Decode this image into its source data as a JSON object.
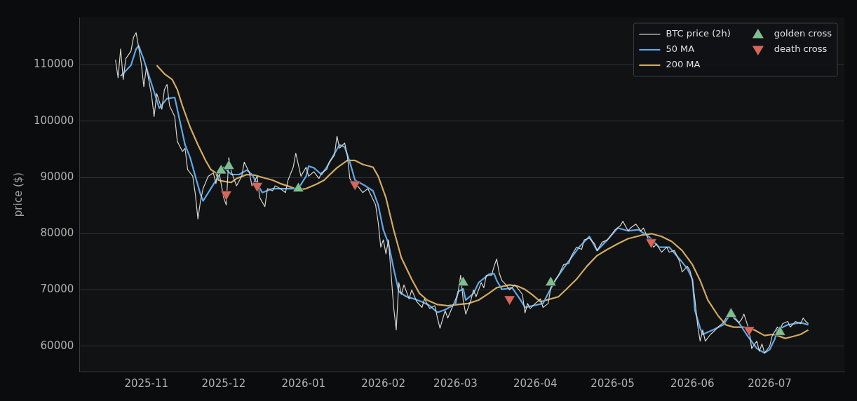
{
  "chart_data": {
    "type": "line",
    "ylabel": "price ($)",
    "xlim": [
      "2025-10-06",
      "2026-07-30"
    ],
    "xticks": [
      {
        "value": "2025-11-01",
        "label": "2025-11"
      },
      {
        "value": "2025-12-01",
        "label": "2025-12"
      },
      {
        "value": "2026-01-01",
        "label": "2026-01"
      },
      {
        "value": "2026-02-01",
        "label": "2026-02"
      },
      {
        "value": "2026-03-01",
        "label": "2026-03"
      },
      {
        "value": "2026-04-01",
        "label": "2026-04"
      },
      {
        "value": "2026-05-01",
        "label": "2026-05"
      },
      {
        "value": "2026-06-01",
        "label": "2026-06"
      },
      {
        "value": "2026-07-01",
        "label": "2026-07"
      }
    ],
    "ylim": [
      55500,
      118400
    ],
    "yticks": [
      60000,
      70000,
      80000,
      90000,
      100000,
      110000
    ],
    "grid": "y",
    "legend": "top right",
    "line_style": "solid",
    "series": [
      {
        "name": "BTC price (2h)",
        "type": "line",
        "color": "#d8d4cc",
        "marker": "none",
        "x": [
          "2025-10-20",
          "2025-10-21",
          "2025-10-22",
          "2025-10-23",
          "2025-10-24",
          "2025-10-26",
          "2025-10-27",
          "2025-10-28",
          "2025-10-29",
          "2025-10-30",
          "2025-10-31",
          "2025-11-01",
          "2025-11-03",
          "2025-11-04",
          "2025-11-05",
          "2025-11-07",
          "2025-11-08",
          "2025-11-09",
          "2025-11-10",
          "2025-11-12",
          "2025-11-13",
          "2025-11-15",
          "2025-11-16",
          "2025-11-17",
          "2025-11-19",
          "2025-11-20",
          "2025-11-21",
          "2025-11-22",
          "2025-11-23",
          "2025-11-25",
          "2025-11-27",
          "2025-11-28",
          "2025-11-29",
          "2025-12-01",
          "2025-12-02",
          "2025-12-03",
          "2025-12-04",
          "2025-12-06",
          "2025-12-08",
          "2025-12-09",
          "2025-12-11",
          "2025-12-12",
          "2025-12-14",
          "2025-12-15",
          "2025-12-17",
          "2025-12-18",
          "2025-12-20",
          "2025-12-21",
          "2025-12-23",
          "2025-12-25",
          "2025-12-26",
          "2025-12-28",
          "2025-12-29",
          "2025-12-31",
          "2026-01-02",
          "2026-01-03",
          "2026-01-05",
          "2026-01-07",
          "2026-01-08",
          "2026-01-10",
          "2026-01-11",
          "2026-01-13",
          "2026-01-14",
          "2026-01-15",
          "2026-01-17",
          "2026-01-18",
          "2026-01-19",
          "2026-01-21",
          "2026-01-22",
          "2026-01-24",
          "2026-01-26",
          "2026-01-27",
          "2026-01-29",
          "2026-01-30",
          "2026-01-31",
          "2026-02-01",
          "2026-02-02",
          "2026-02-03",
          "2026-02-05",
          "2026-02-06",
          "2026-02-07",
          "2026-02-08",
          "2026-02-09",
          "2026-02-11",
          "2026-02-12",
          "2026-02-14",
          "2026-02-16",
          "2026-02-17",
          "2026-02-19",
          "2026-02-21",
          "2026-02-22",
          "2026-02-23",
          "2026-02-25",
          "2026-02-26",
          "2026-02-28",
          "2026-03-02",
          "2026-03-03",
          "2026-03-04",
          "2026-03-05",
          "2026-03-07",
          "2026-03-08",
          "2026-03-09",
          "2026-03-11",
          "2026-03-12",
          "2026-03-13",
          "2026-03-15",
          "2026-03-16",
          "2026-03-17",
          "2026-03-18",
          "2026-03-19",
          "2026-03-21",
          "2026-03-22",
          "2026-03-24",
          "2026-03-25",
          "2026-03-27",
          "2026-03-28",
          "2026-03-29",
          "2026-03-30",
          "2026-04-01",
          "2026-04-03",
          "2026-04-04",
          "2026-04-06",
          "2026-04-07",
          "2026-04-09",
          "2026-04-10",
          "2026-04-12",
          "2026-04-14",
          "2026-04-15",
          "2026-04-17",
          "2026-04-19",
          "2026-04-20",
          "2026-04-22",
          "2026-04-24",
          "2026-04-25",
          "2026-04-27",
          "2026-04-29",
          "2026-04-30",
          "2026-05-02",
          "2026-05-04",
          "2026-05-05",
          "2026-05-07",
          "2026-05-08",
          "2026-05-10",
          "2026-05-12",
          "2026-05-13",
          "2026-05-15",
          "2026-05-17",
          "2026-05-18",
          "2026-05-20",
          "2026-05-22",
          "2026-05-23",
          "2026-05-25",
          "2026-05-27",
          "2026-05-28",
          "2026-05-30",
          "2026-05-31",
          "2026-06-01",
          "2026-06-02",
          "2026-06-03",
          "2026-06-04",
          "2026-06-05",
          "2026-06-06",
          "2026-06-08",
          "2026-06-09",
          "2026-06-11",
          "2026-06-13",
          "2026-06-14",
          "2026-06-16",
          "2026-06-17",
          "2026-06-19",
          "2026-06-20",
          "2026-06-21",
          "2026-06-23",
          "2026-06-24",
          "2026-06-26",
          "2026-06-27",
          "2026-06-28",
          "2026-06-29",
          "2026-07-01",
          "2026-07-02",
          "2026-07-04",
          "2026-07-05",
          "2026-07-06",
          "2026-07-08",
          "2026-07-09",
          "2026-07-11",
          "2026-07-13",
          "2026-07-14",
          "2026-07-15",
          "2026-07-16"
        ],
        "values": [
          110900,
          107700,
          112800,
          107400,
          111100,
          112400,
          114900,
          115700,
          113100,
          110300,
          106100,
          109600,
          104600,
          100800,
          104900,
          102100,
          105600,
          106500,
          102700,
          100800,
          96400,
          94600,
          95200,
          91400,
          90200,
          87000,
          82600,
          85800,
          88000,
          90200,
          90800,
          88900,
          91400,
          86400,
          85100,
          93500,
          91000,
          88500,
          90200,
          92700,
          90800,
          88500,
          90200,
          86400,
          84800,
          88000,
          87600,
          88500,
          88000,
          87300,
          89500,
          91800,
          94300,
          90200,
          91800,
          90200,
          91000,
          89800,
          90800,
          91400,
          92700,
          93900,
          97300,
          95200,
          96100,
          93900,
          89800,
          88000,
          88500,
          87300,
          88000,
          87000,
          85100,
          82000,
          77600,
          78900,
          76400,
          78900,
          66900,
          62900,
          71300,
          69200,
          70900,
          68400,
          70000,
          67900,
          66900,
          68400,
          66700,
          67200,
          65000,
          63200,
          66300,
          65000,
          67200,
          69400,
          72600,
          68200,
          65700,
          68200,
          70000,
          68800,
          71300,
          70400,
          72600,
          72600,
          74200,
          75500,
          73000,
          71700,
          70700,
          70000,
          70900,
          70400,
          69200,
          65900,
          67600,
          66700,
          67600,
          68400,
          66900,
          67600,
          70400,
          71900,
          72600,
          74500,
          74700,
          76000,
          77600,
          77200,
          78900,
          79200,
          78200,
          77000,
          78500,
          78900,
          79500,
          80700,
          81400,
          82200,
          80500,
          81000,
          81700,
          80500,
          81000,
          78900,
          77600,
          78200,
          76700,
          77600,
          76700,
          77000,
          75100,
          73200,
          74200,
          73500,
          71700,
          68200,
          63800,
          60900,
          62900,
          60900,
          62100,
          62500,
          63400,
          64200,
          65000,
          66700,
          65000,
          64200,
          64700,
          65700,
          62900,
          59600,
          60900,
          59100,
          60400,
          58800,
          60000,
          61900,
          63400,
          62900,
          64000,
          64400,
          63400,
          64400,
          64000,
          65000,
          64400,
          64000
        ]
      },
      {
        "name": "50 MA",
        "type": "line",
        "color": "#5fa8e8",
        "marker": "none",
        "x": [
          "2025-10-22",
          "2025-10-26",
          "2025-10-28",
          "2025-10-29",
          "2025-10-31",
          "2025-11-04",
          "2025-11-06",
          "2025-11-09",
          "2025-11-12",
          "2025-11-13",
          "2025-11-16",
          "2025-11-18",
          "2025-11-20",
          "2025-11-22",
          "2025-11-23",
          "2025-11-26",
          "2025-11-29",
          "2025-12-01",
          "2025-12-04",
          "2025-12-07",
          "2025-12-10",
          "2025-12-12",
          "2025-12-14",
          "2025-12-16",
          "2025-12-20",
          "2025-12-24",
          "2025-12-30",
          "2026-01-02",
          "2026-01-03",
          "2026-01-05",
          "2026-01-08",
          "2026-01-10",
          "2026-01-13",
          "2026-01-15",
          "2026-01-17",
          "2026-01-19",
          "2026-01-21",
          "2026-01-25",
          "2026-01-28",
          "2026-01-30",
          "2026-02-01",
          "2026-02-03",
          "2026-02-05",
          "2026-02-07",
          "2026-02-10",
          "2026-02-13",
          "2026-02-16",
          "2026-02-19",
          "2026-02-22",
          "2026-02-25",
          "2026-03-01",
          "2026-03-02",
          "2026-03-04",
          "2026-03-05",
          "2026-03-08",
          "2026-03-10",
          "2026-03-14",
          "2026-03-16",
          "2026-03-17",
          "2026-03-19",
          "2026-03-23",
          "2026-03-26",
          "2026-03-28",
          "2026-03-31",
          "2026-04-04",
          "2026-04-06",
          "2026-04-09",
          "2026-04-13",
          "2026-04-18",
          "2026-04-22",
          "2026-04-25",
          "2026-04-29",
          "2026-05-03",
          "2026-05-07",
          "2026-05-11",
          "2026-05-15",
          "2026-05-19",
          "2026-05-23",
          "2026-05-27",
          "2026-05-30",
          "2026-06-01",
          "2026-06-02",
          "2026-06-04",
          "2026-06-05",
          "2026-06-09",
          "2026-06-13",
          "2026-06-16",
          "2026-06-19",
          "2026-06-22",
          "2026-06-26",
          "2026-06-29",
          "2026-07-01",
          "2026-07-03",
          "2026-07-04",
          "2026-07-08",
          "2026-07-13",
          "2026-07-16"
        ],
        "values": [
          108000,
          109900,
          112800,
          113400,
          110900,
          105200,
          102300,
          104000,
          104200,
          102100,
          95800,
          93500,
          90200,
          87000,
          85800,
          88000,
          90200,
          91800,
          90500,
          90500,
          91300,
          90500,
          88900,
          87300,
          88000,
          88000,
          88000,
          90200,
          92000,
          91700,
          90500,
          91800,
          94200,
          95800,
          95400,
          92700,
          89500,
          88500,
          87600,
          85100,
          80700,
          78200,
          73800,
          69700,
          68800,
          68400,
          67900,
          67200,
          66000,
          66500,
          67500,
          69700,
          70200,
          68200,
          69400,
          71300,
          72800,
          72900,
          71700,
          70100,
          70400,
          68400,
          66900,
          67200,
          67600,
          69400,
          71900,
          74500,
          77600,
          79500,
          77000,
          78900,
          81000,
          80500,
          80700,
          79500,
          77600,
          77600,
          75500,
          73800,
          71900,
          66300,
          63200,
          62100,
          62900,
          63800,
          65900,
          64200,
          62100,
          59600,
          58800,
          59400,
          61300,
          62900,
          63800,
          64200,
          63800
        ]
      },
      {
        "name": "200 MA",
        "type": "line",
        "color": "#d4aa60",
        "marker": "none",
        "x": [
          "2025-11-05",
          "2025-11-08",
          "2025-11-11",
          "2025-11-13",
          "2025-11-15",
          "2025-11-18",
          "2025-11-21",
          "2025-11-24",
          "2025-11-26",
          "2025-11-28",
          "2025-11-29",
          "2025-12-01",
          "2025-12-04",
          "2025-12-06",
          "2025-12-10",
          "2025-12-13",
          "2025-12-16",
          "2025-12-20",
          "2025-12-23",
          "2025-12-27",
          "2025-12-30",
          "2026-01-02",
          "2026-01-06",
          "2026-01-09",
          "2026-01-11",
          "2026-01-14",
          "2026-01-18",
          "2026-01-21",
          "2026-01-24",
          "2026-01-28",
          "2026-01-30",
          "2026-02-02",
          "2026-02-05",
          "2026-02-08",
          "2026-02-12",
          "2026-02-15",
          "2026-02-18",
          "2026-02-22",
          "2026-02-26",
          "2026-03-02",
          "2026-03-06",
          "2026-03-10",
          "2026-03-14",
          "2026-03-17",
          "2026-03-22",
          "2026-03-25",
          "2026-03-28",
          "2026-03-31",
          "2026-04-03",
          "2026-04-07",
          "2026-04-10",
          "2026-04-13",
          "2026-04-17",
          "2026-04-21",
          "2026-04-25",
          "2026-04-29",
          "2026-05-03",
          "2026-05-07",
          "2026-05-12",
          "2026-05-16",
          "2026-05-20",
          "2026-05-24",
          "2026-05-28",
          "2026-06-01",
          "2026-06-04",
          "2026-06-07",
          "2026-06-11",
          "2026-06-14",
          "2026-06-17",
          "2026-06-21",
          "2026-06-25",
          "2026-06-29",
          "2026-07-02",
          "2026-07-04",
          "2026-07-07",
          "2026-07-09",
          "2026-07-13",
          "2026-07-16"
        ],
        "values": [
          109900,
          108400,
          107400,
          105600,
          102700,
          98900,
          95800,
          93000,
          91400,
          90800,
          89500,
          89300,
          89100,
          89800,
          90500,
          90400,
          90000,
          89500,
          88900,
          88300,
          87800,
          88000,
          88800,
          89500,
          90400,
          91700,
          93000,
          93000,
          92300,
          91800,
          90200,
          86400,
          80700,
          75700,
          71900,
          69400,
          68200,
          67400,
          67200,
          67400,
          67600,
          68200,
          69400,
          70400,
          70900,
          70700,
          70100,
          69100,
          67900,
          68400,
          68800,
          70100,
          71900,
          74200,
          76100,
          77200,
          78200,
          79100,
          79700,
          80000,
          79500,
          78600,
          77000,
          74500,
          71700,
          68200,
          65400,
          63800,
          63400,
          63400,
          62900,
          61900,
          62100,
          61900,
          61400,
          61600,
          62100,
          62900
        ]
      },
      {
        "name": "golden cross",
        "type": "scatter",
        "color": "#7fbf8f",
        "marker": "triangle",
        "x": [
          "2025-11-30",
          "2025-12-03",
          "2025-12-30",
          "2026-03-04",
          "2026-04-07",
          "2026-06-16",
          "2026-07-05"
        ],
        "values": [
          91200,
          92000,
          88000,
          71300,
          71300,
          65700,
          62500
        ]
      },
      {
        "name": "death cross",
        "type": "scatter",
        "color": "#d9665a",
        "marker": "triangle",
        "x": [
          "2025-12-02",
          "2025-12-14",
          "2026-01-21",
          "2026-03-22",
          "2026-05-16",
          "2026-06-23"
        ],
        "values": [
          87000,
          88500,
          88800,
          68400,
          78500,
          62900
        ]
      }
    ]
  }
}
